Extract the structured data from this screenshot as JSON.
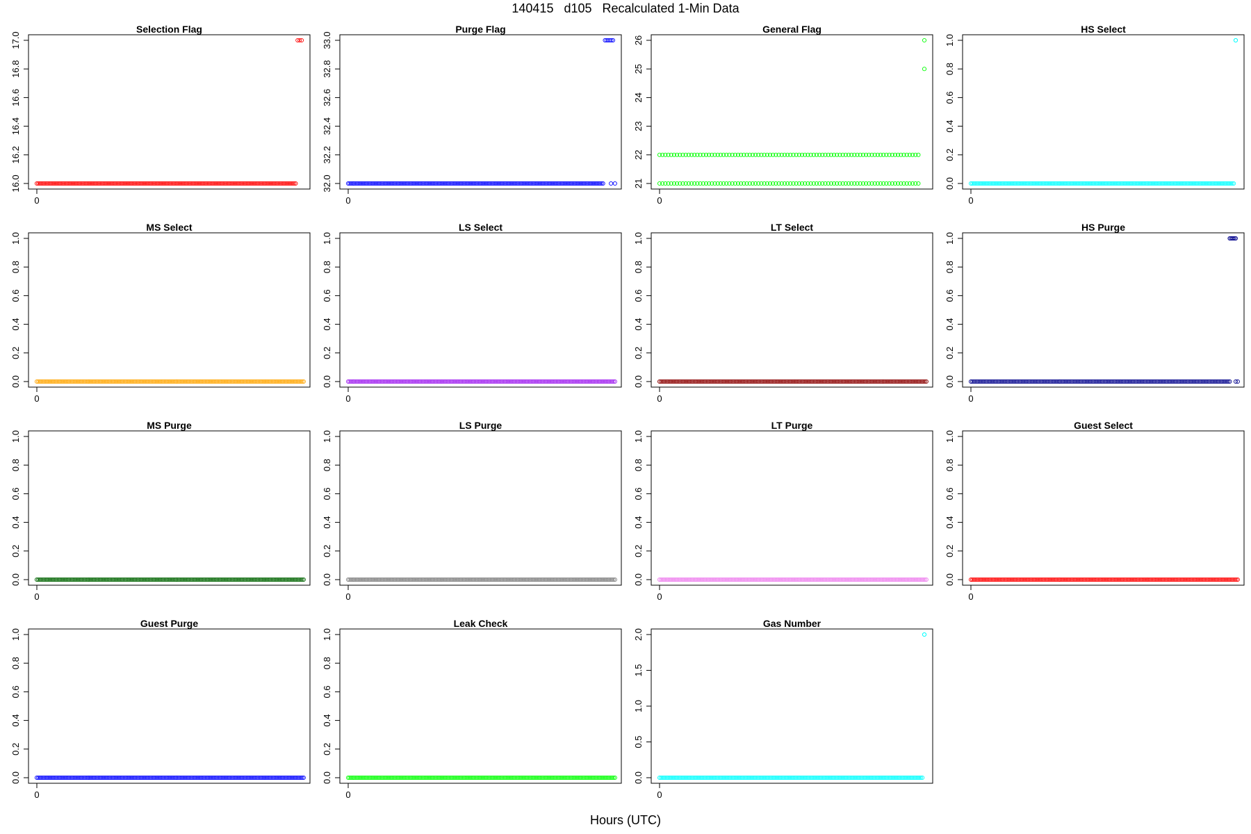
{
  "figure": {
    "title": "140415   d105   Recalculated 1-Min Data",
    "xlabel": "Hours (UTC)"
  },
  "chart_data": [
    {
      "type": "scatter",
      "title": "Selection Flag",
      "color": "#ff0000",
      "xlim": [
        0,
        1.33
      ],
      "ylim": [
        16.0,
        17.0
      ],
      "x_ticks": [
        0
      ],
      "x_tick_labels": [
        "0"
      ],
      "y_ticks": [
        16.0,
        16.2,
        16.4,
        16.6,
        16.8,
        17.0
      ],
      "y_tick_labels": [
        "16.0",
        "16.2",
        "16.4",
        "16.6",
        "16.8",
        "17.0"
      ],
      "segments": [
        {
          "x_start": 0.0,
          "x_end": 1.3,
          "y": 16.0,
          "count": 180
        },
        {
          "x_start": 1.31,
          "x_end": 1.33,
          "y": 17.0,
          "count": 3
        }
      ]
    },
    {
      "type": "scatter",
      "title": "Purge Flag",
      "color": "#0000ff",
      "xlim": [
        0,
        1.33
      ],
      "ylim": [
        32.0,
        33.0
      ],
      "x_ticks": [
        0
      ],
      "x_tick_labels": [
        "0"
      ],
      "y_ticks": [
        32.0,
        32.2,
        32.4,
        32.6,
        32.8,
        33.0
      ],
      "y_tick_labels": [
        "32.0",
        "32.2",
        "32.4",
        "32.6",
        "32.8",
        "33.0"
      ],
      "segments": [
        {
          "x_start": 0.0,
          "x_end": 1.28,
          "y": 32.0,
          "count": 175
        },
        {
          "x_start": 1.29,
          "x_end": 1.33,
          "y": 33.0,
          "count": 6
        },
        {
          "x_start": 1.32,
          "x_end": 1.34,
          "y": 32.0,
          "count": 2
        }
      ]
    },
    {
      "type": "scatter",
      "title": "General Flag",
      "color": "#00ff00",
      "xlim": [
        0,
        1.33
      ],
      "ylim": [
        21,
        26
      ],
      "x_ticks": [
        0
      ],
      "x_tick_labels": [
        "0"
      ],
      "y_ticks": [
        21,
        22,
        23,
        24,
        25,
        26
      ],
      "y_tick_labels": [
        "21",
        "22",
        "23",
        "24",
        "25",
        "26"
      ],
      "segments": [
        {
          "x_start": 0.0,
          "x_end": 1.3,
          "y": 22,
          "count": 90
        },
        {
          "x_start": 0.0,
          "x_end": 1.3,
          "y": 21,
          "count": 90
        },
        {
          "x_start": 1.33,
          "x_end": 1.33,
          "y": 25,
          "count": 1
        },
        {
          "x_start": 1.33,
          "x_end": 1.33,
          "y": 26,
          "count": 1
        }
      ]
    },
    {
      "type": "scatter",
      "title": "HS Select",
      "color": "#00ffff",
      "xlim": [
        0,
        1.33
      ],
      "ylim": [
        0,
        1.0
      ],
      "x_ticks": [
        0
      ],
      "x_tick_labels": [
        "0"
      ],
      "y_ticks": [
        0,
        0.2,
        0.4,
        0.6,
        0.8,
        1.0
      ],
      "y_tick_labels": [
        "0.0",
        "0.2",
        "0.4",
        "0.6",
        "0.8",
        "1.0"
      ],
      "segments": [
        {
          "x_start": 0.0,
          "x_end": 1.32,
          "y": 0,
          "count": 180
        },
        {
          "x_start": 1.33,
          "x_end": 1.33,
          "y": 1,
          "count": 2
        }
      ]
    },
    {
      "type": "scatter",
      "title": "MS Select",
      "color": "#ffa500",
      "xlim": [
        0,
        1.33
      ],
      "ylim": [
        0,
        1.0
      ],
      "x_ticks": [
        0
      ],
      "x_tick_labels": [
        "0"
      ],
      "y_ticks": [
        0,
        0.2,
        0.4,
        0.6,
        0.8,
        1.0
      ],
      "y_tick_labels": [
        "0.0",
        "0.2",
        "0.4",
        "0.6",
        "0.8",
        "1.0"
      ],
      "segments": [
        {
          "x_start": 0.0,
          "x_end": 1.34,
          "y": 0,
          "count": 183
        }
      ]
    },
    {
      "type": "scatter",
      "title": "LS Select",
      "color": "#a020f0",
      "xlim": [
        0,
        1.33
      ],
      "ylim": [
        0,
        1.0
      ],
      "x_ticks": [
        0
      ],
      "x_tick_labels": [
        "0"
      ],
      "y_ticks": [
        0,
        0.2,
        0.4,
        0.6,
        0.8,
        1.0
      ],
      "y_tick_labels": [
        "0.0",
        "0.2",
        "0.4",
        "0.6",
        "0.8",
        "1.0"
      ],
      "segments": [
        {
          "x_start": 0.0,
          "x_end": 1.34,
          "y": 0,
          "count": 183
        }
      ]
    },
    {
      "type": "scatter",
      "title": "LT Select",
      "color": "#8b0000",
      "xlim": [
        0,
        1.33
      ],
      "ylim": [
        0,
        1.0
      ],
      "x_ticks": [
        0
      ],
      "x_tick_labels": [
        "0"
      ],
      "y_ticks": [
        0,
        0.2,
        0.4,
        0.6,
        0.8,
        1.0
      ],
      "y_tick_labels": [
        "0.0",
        "0.2",
        "0.4",
        "0.6",
        "0.8",
        "1.0"
      ],
      "segments": [
        {
          "x_start": 0.0,
          "x_end": 1.34,
          "y": 0,
          "count": 183
        }
      ]
    },
    {
      "type": "scatter",
      "title": "HS Purge",
      "color": "#00008b",
      "xlim": [
        0,
        1.33
      ],
      "ylim": [
        0,
        1.0
      ],
      "x_ticks": [
        0
      ],
      "x_tick_labels": [
        "0"
      ],
      "y_ticks": [
        0,
        0.2,
        0.4,
        0.6,
        0.8,
        1.0
      ],
      "y_tick_labels": [
        "0.0",
        "0.2",
        "0.4",
        "0.6",
        "0.8",
        "1.0"
      ],
      "segments": [
        {
          "x_start": 0.0,
          "x_end": 1.3,
          "y": 0,
          "count": 175
        },
        {
          "x_start": 1.3,
          "x_end": 1.33,
          "y": 1,
          "count": 6
        },
        {
          "x_start": 1.33,
          "x_end": 1.34,
          "y": 0,
          "count": 2
        }
      ]
    },
    {
      "type": "scatter",
      "title": "MS Purge",
      "color": "#006400",
      "xlim": [
        0,
        1.33
      ],
      "ylim": [
        0,
        1.0
      ],
      "x_ticks": [
        0
      ],
      "x_tick_labels": [
        "0"
      ],
      "y_ticks": [
        0,
        0.2,
        0.4,
        0.6,
        0.8,
        1.0
      ],
      "y_tick_labels": [
        "0.0",
        "0.2",
        "0.4",
        "0.6",
        "0.8",
        "1.0"
      ],
      "segments": [
        {
          "x_start": 0.0,
          "x_end": 1.34,
          "y": 0,
          "count": 183
        }
      ]
    },
    {
      "type": "scatter",
      "title": "LS Purge",
      "color": "#808080",
      "xlim": [
        0,
        1.33
      ],
      "ylim": [
        0,
        1.0
      ],
      "x_ticks": [
        0
      ],
      "x_tick_labels": [
        "0"
      ],
      "y_ticks": [
        0,
        0.2,
        0.4,
        0.6,
        0.8,
        1.0
      ],
      "y_tick_labels": [
        "0.0",
        "0.2",
        "0.4",
        "0.6",
        "0.8",
        "1.0"
      ],
      "segments": [
        {
          "x_start": 0.0,
          "x_end": 1.34,
          "y": 0,
          "count": 183
        }
      ]
    },
    {
      "type": "scatter",
      "title": "LT Purge",
      "color": "#ee82ee",
      "xlim": [
        0,
        1.33
      ],
      "ylim": [
        0,
        1.0
      ],
      "x_ticks": [
        0
      ],
      "x_tick_labels": [
        "0"
      ],
      "y_ticks": [
        0,
        0.2,
        0.4,
        0.6,
        0.8,
        1.0
      ],
      "y_tick_labels": [
        "0.0",
        "0.2",
        "0.4",
        "0.6",
        "0.8",
        "1.0"
      ],
      "segments": [
        {
          "x_start": 0.0,
          "x_end": 1.34,
          "y": 0,
          "count": 183
        }
      ]
    },
    {
      "type": "scatter",
      "title": "Guest Select",
      "color": "#ff0000",
      "xlim": [
        0,
        1.33
      ],
      "ylim": [
        0,
        1.0
      ],
      "x_ticks": [
        0
      ],
      "x_tick_labels": [
        "0"
      ],
      "y_ticks": [
        0,
        0.2,
        0.4,
        0.6,
        0.8,
        1.0
      ],
      "y_tick_labels": [
        "0.0",
        "0.2",
        "0.4",
        "0.6",
        "0.8",
        "1.0"
      ],
      "segments": [
        {
          "x_start": 0.0,
          "x_end": 1.34,
          "y": 0,
          "count": 183
        }
      ]
    },
    {
      "type": "scatter",
      "title": "Guest Purge",
      "color": "#0000ff",
      "xlim": [
        0,
        1.33
      ],
      "ylim": [
        0,
        1.0
      ],
      "x_ticks": [
        0
      ],
      "x_tick_labels": [
        "0"
      ],
      "y_ticks": [
        0,
        0.2,
        0.4,
        0.6,
        0.8,
        1.0
      ],
      "y_tick_labels": [
        "0.0",
        "0.2",
        "0.4",
        "0.6",
        "0.8",
        "1.0"
      ],
      "segments": [
        {
          "x_start": 0.0,
          "x_end": 1.34,
          "y": 0,
          "count": 183
        }
      ]
    },
    {
      "type": "scatter",
      "title": "Leak Check",
      "color": "#00ff00",
      "xlim": [
        0,
        1.33
      ],
      "ylim": [
        0,
        1.0
      ],
      "x_ticks": [
        0
      ],
      "x_tick_labels": [
        "0"
      ],
      "y_ticks": [
        0,
        0.2,
        0.4,
        0.6,
        0.8,
        1.0
      ],
      "y_tick_labels": [
        "0.0",
        "0.2",
        "0.4",
        "0.6",
        "0.8",
        "1.0"
      ],
      "segments": [
        {
          "x_start": 0.0,
          "x_end": 1.34,
          "y": 0,
          "count": 183
        }
      ]
    },
    {
      "type": "scatter",
      "title": "Gas Number",
      "color": "#00ffff",
      "xlim": [
        0,
        1.33
      ],
      "ylim": [
        0,
        2.0
      ],
      "x_ticks": [
        0
      ],
      "x_tick_labels": [
        "0"
      ],
      "y_ticks": [
        0,
        0.5,
        1.0,
        1.5,
        2.0
      ],
      "y_tick_labels": [
        "0.0",
        "0.5",
        "1.0",
        "1.5",
        "2.0"
      ],
      "segments": [
        {
          "x_start": 0.0,
          "x_end": 1.32,
          "y": 0,
          "count": 180
        },
        {
          "x_start": 1.33,
          "x_end": 1.33,
          "y": 2,
          "count": 2
        }
      ]
    }
  ]
}
